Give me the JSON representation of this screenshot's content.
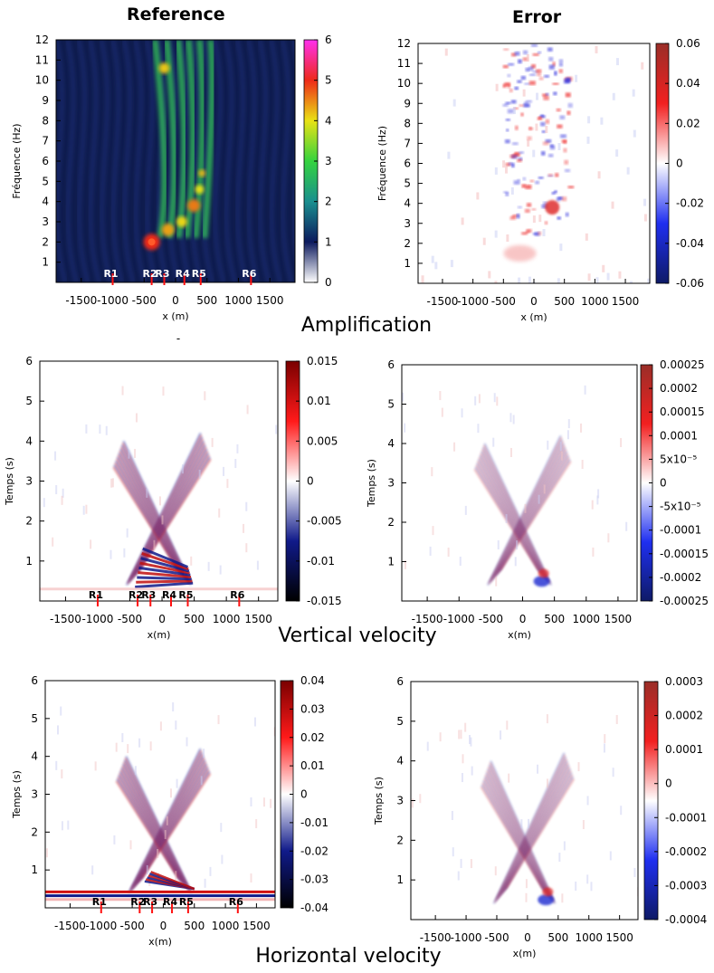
{
  "titles": {
    "reference": "Reference",
    "error": "Error",
    "row1": "Amplification",
    "row2": "Vertical velocity",
    "row3": "Horizontal velocity",
    "stray_mark": "-"
  },
  "chart_data": [
    {
      "id": "amp_ref",
      "type": "heatmap",
      "title": "",
      "xlabel": "x (m)",
      "ylabel": "Fréquence (Hz)",
      "xlim": [
        -1900,
        1900
      ],
      "ylim": [
        0,
        12
      ],
      "xticks": [
        -1500,
        -1000,
        -500,
        0,
        500,
        1000,
        1500
      ],
      "yticks": [
        1,
        2,
        3,
        4,
        5,
        6,
        7,
        8,
        9,
        10,
        11,
        12
      ],
      "colorbar": {
        "min": 0,
        "max": 6,
        "ticks": [
          "0",
          "1",
          "2",
          "3",
          "4",
          "5",
          "6"
        ],
        "palette": [
          "#ffffff",
          "#0c1a5e",
          "#1a8f8f",
          "#35d33f",
          "#e9e215",
          "#ee2a19",
          "#ff30ee"
        ]
      },
      "receivers": [
        {
          "label": "R1",
          "x": -1000
        },
        {
          "label": "R2",
          "x": -380
        },
        {
          "label": "R3",
          "x": -180
        },
        {
          "label": "R4",
          "x": 140
        },
        {
          "label": "R5",
          "x": 400
        },
        {
          "label": "R6",
          "x": 1200
        }
      ]
    },
    {
      "id": "amp_err",
      "type": "heatmap",
      "title": "",
      "xlabel": "x (m)",
      "ylabel": "Fréquence (Hz)",
      "xlim": [
        -1900,
        1900
      ],
      "ylim": [
        0,
        12
      ],
      "xticks": [
        -1500,
        -1000,
        -500,
        0,
        500,
        1000,
        1500
      ],
      "yticks": [
        1,
        2,
        3,
        4,
        5,
        6,
        7,
        8,
        9,
        10,
        11,
        12
      ],
      "colorbar": {
        "min": -0.06,
        "max": 0.06,
        "ticks": [
          "-0.06",
          "-0.04",
          "-0.02",
          "0",
          "0.02",
          "0.04",
          "0.06"
        ],
        "palette": [
          "#0e1a66",
          "#1f2ff0",
          "#ffffff",
          "#f22020",
          "#9a2e28"
        ]
      }
    },
    {
      "id": "vz_ref",
      "type": "heatmap",
      "title": "",
      "xlabel": "x(m)",
      "ylabel": "Temps (s)",
      "xlim": [
        -1900,
        1800
      ],
      "ylim": [
        0,
        6
      ],
      "xticks": [
        -1500,
        -1000,
        -500,
        0,
        500,
        1000,
        1500
      ],
      "yticks": [
        1,
        2,
        3,
        4,
        5,
        6
      ],
      "colorbar": {
        "min": -0.015,
        "max": 0.015,
        "ticks": [
          "-0.015",
          "-0.01",
          "-0.005",
          "0",
          "0.005",
          "0.01",
          "0.015"
        ],
        "palette": [
          "#000000",
          "#101a8a",
          "#ffffff",
          "#ff1a1a",
          "#7a0000"
        ]
      },
      "receivers": [
        {
          "label": "R1",
          "x": -1000
        },
        {
          "label": "R2",
          "x": -380
        },
        {
          "label": "R3",
          "x": -180
        },
        {
          "label": "R4",
          "x": 140
        },
        {
          "label": "R5",
          "x": 400
        },
        {
          "label": "R6",
          "x": 1200
        }
      ]
    },
    {
      "id": "vz_err",
      "type": "heatmap",
      "title": "",
      "xlabel": "x(m)",
      "ylabel": "Temps (s)",
      "xlim": [
        -1900,
        1800
      ],
      "ylim": [
        0,
        6
      ],
      "xticks": [
        -1500,
        -1000,
        -500,
        0,
        500,
        1000,
        1500
      ],
      "yticks": [
        1,
        2,
        3,
        4,
        5,
        6
      ],
      "colorbar": {
        "min": -0.00025,
        "max": 0.00025,
        "ticks": [
          "-0.00025",
          "-0.0002",
          "-0.00015",
          "-0.0001",
          "-5x10⁻⁵",
          "0",
          "5x10⁻⁵",
          "0.0001",
          "0.00015",
          "0.0002",
          "0.00025"
        ],
        "palette": [
          "#0e1a66",
          "#1f2ff0",
          "#ffffff",
          "#f22020",
          "#9a2e28"
        ]
      }
    },
    {
      "id": "vx_ref",
      "type": "heatmap",
      "title": "",
      "xlabel": "x(m)",
      "ylabel": "Temps (s)",
      "xlim": [
        -1900,
        1800
      ],
      "ylim": [
        0,
        6
      ],
      "xticks": [
        -1500,
        -1000,
        -500,
        0,
        500,
        1000,
        1500
      ],
      "yticks": [
        1,
        2,
        3,
        4,
        5,
        6
      ],
      "colorbar": {
        "min": -0.04,
        "max": 0.04,
        "ticks": [
          "-0.04",
          "-0.03",
          "-0.02",
          "-0.01",
          "0",
          "0.01",
          "0.02",
          "0.03",
          "0.04"
        ],
        "palette": [
          "#000000",
          "#101a8a",
          "#ffffff",
          "#ff1a1a",
          "#7a0000"
        ]
      },
      "receivers": [
        {
          "label": "R1",
          "x": -1000
        },
        {
          "label": "R2",
          "x": -380
        },
        {
          "label": "R3",
          "x": -180
        },
        {
          "label": "R4",
          "x": 140
        },
        {
          "label": "R5",
          "x": 400
        },
        {
          "label": "R6",
          "x": 1200
        }
      ]
    },
    {
      "id": "vx_err",
      "type": "heatmap",
      "title": "",
      "xlabel": "x(m)",
      "ylabel": "Temps (s)",
      "xlim": [
        -1900,
        1800
      ],
      "ylim": [
        0,
        6
      ],
      "xticks": [
        -1500,
        -1000,
        -500,
        0,
        500,
        1000,
        1500
      ],
      "yticks": [
        1,
        2,
        3,
        4,
        5,
        6
      ],
      "colorbar": {
        "min": -0.0004,
        "max": 0.0003,
        "ticks": [
          "-0.0004",
          "-0.0003",
          "-0.0002",
          "-0.0001",
          "0",
          "0.0001",
          "0.0002",
          "0.0003"
        ],
        "palette": [
          "#0e1a66",
          "#1f2ff0",
          "#ffffff",
          "#f22020",
          "#9a2e28"
        ]
      }
    }
  ]
}
